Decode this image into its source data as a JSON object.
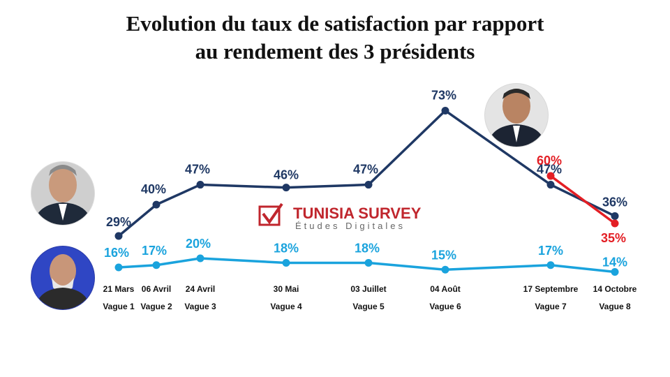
{
  "title_line1": "Evolution du taux de satisfaction par rapport",
  "title_line2": "au rendement des 3 présidents",
  "logo": {
    "name": "TUNISIA SURVEY",
    "tagline": "Études Digitales"
  },
  "chart_data": {
    "type": "line",
    "categories": [
      "21 Mars",
      "06 Avril",
      "24 Avril",
      "30 Mai",
      "03 Juillet",
      "04 Août",
      "17 Septembre",
      "14 Octobre"
    ],
    "waves": [
      "Vague 1",
      "Vague 2",
      "Vague 3",
      "Vague 4",
      "Vague 5",
      "Vague 6",
      "Vague 7",
      "Vague 8"
    ],
    "series": [
      {
        "key": "president1",
        "color": "#1f3864",
        "values": [
          29,
          40,
          47,
          46,
          47,
          73,
          47,
          36
        ],
        "labels": [
          "29%",
          "40%",
          "47%",
          "46%",
          "47%",
          "73%",
          "47%",
          "36%"
        ]
      },
      {
        "key": "president2",
        "color": "#1aa3dd",
        "values": [
          16,
          17,
          20,
          18,
          18,
          15,
          17,
          14
        ],
        "labels": [
          "16%",
          "17%",
          "20%",
          "18%",
          "18%",
          "15%",
          "17%",
          "14%"
        ]
      },
      {
        "key": "president3",
        "color": "#e31e24",
        "values": [
          null,
          null,
          null,
          null,
          null,
          null,
          60,
          35
        ],
        "labels": [
          null,
          null,
          null,
          null,
          null,
          null,
          "60%",
          "35%"
        ]
      }
    ],
    "title": "Evolution du taux de satisfaction par rapport au rendement des 3 présidents",
    "ylim": [
      0,
      100
    ],
    "grid": false,
    "legend": "none"
  }
}
